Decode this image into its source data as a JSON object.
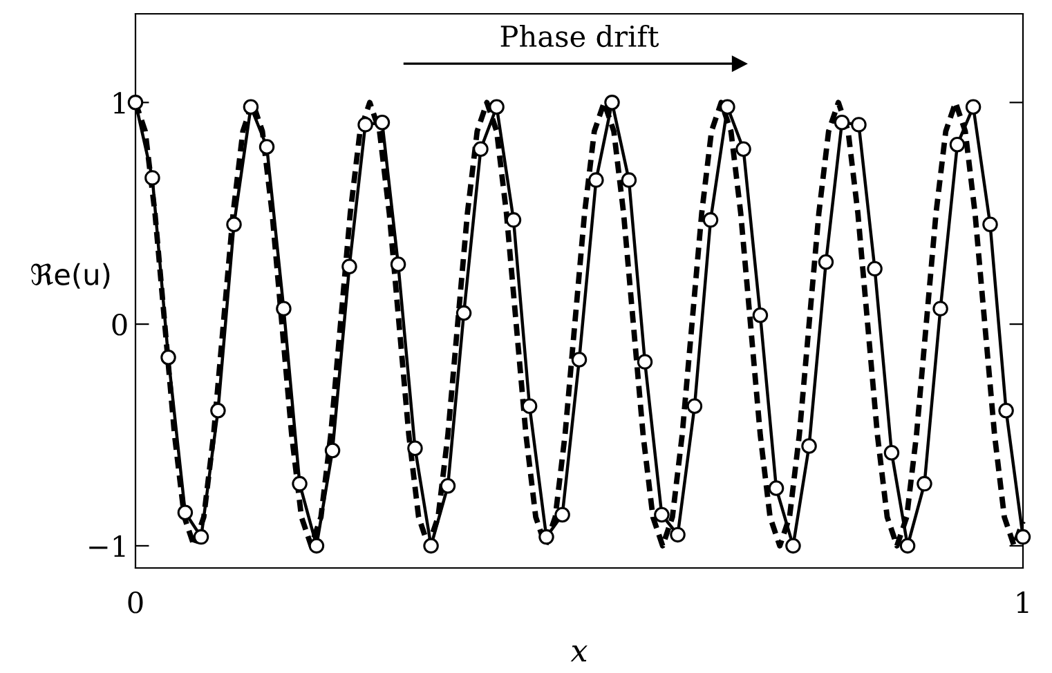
{
  "chart_data": {
    "type": "line",
    "xlabel": "x",
    "ylabel": "ℜe(u)",
    "annotations": [
      "Phase drift"
    ],
    "xlim": [
      0,
      1
    ],
    "ylim": [
      -1.1,
      1.4
    ],
    "xticks": [
      0,
      1
    ],
    "yticks": [
      {
        "value": -1,
        "label": "−1"
      },
      0,
      1
    ],
    "grid": false,
    "legend": false,
    "series": [
      {
        "color": "#000000",
        "line_style": "dashed",
        "marker": "none",
        "x": [
          0,
          0.011,
          0.022,
          0.033,
          0.044,
          0.055,
          0.066,
          0.077,
          0.088,
          0.099,
          0.11,
          0.121,
          0.132,
          0.143,
          0.154,
          0.165,
          0.176,
          0.187,
          0.198,
          0.209,
          0.22,
          0.231,
          0.242,
          0.253,
          0.264,
          0.275,
          0.286,
          0.297,
          0.308,
          0.319,
          0.33,
          0.341,
          0.352,
          0.363,
          0.374,
          0.385,
          0.396,
          0.407,
          0.418,
          0.429,
          0.44,
          0.451,
          0.462,
          0.473,
          0.484,
          0.495,
          0.506,
          0.517,
          0.528,
          0.539,
          0.55,
          0.561,
          0.572,
          0.583,
          0.594,
          0.605,
          0.616,
          0.627,
          0.638,
          0.649,
          0.66,
          0.671,
          0.682,
          0.693,
          0.704,
          0.715,
          0.726,
          0.737,
          0.748,
          0.759,
          0.77,
          0.781,
          0.792,
          0.803,
          0.814,
          0.825,
          0.836,
          0.847,
          0.858,
          0.869,
          0.88,
          0.891,
          0.902,
          0.913,
          0.924,
          0.935,
          0.946,
          0.957,
          0.968,
          0.979,
          0.99,
          1.0
        ],
        "values": [
          1,
          0.87,
          0.5,
          0,
          -0.5,
          -0.87,
          -1,
          -0.87,
          -0.5,
          0,
          0.5,
          0.87,
          1,
          0.87,
          0.5,
          0,
          -0.5,
          -0.87,
          -1,
          -0.87,
          -0.5,
          0,
          0.5,
          0.87,
          1,
          0.87,
          0.5,
          0,
          -0.5,
          -0.87,
          -1,
          -0.87,
          -0.5,
          0,
          0.5,
          0.87,
          1,
          0.87,
          0.5,
          0,
          -0.5,
          -0.87,
          -1,
          -0.87,
          -0.5,
          0,
          0.5,
          0.87,
          1,
          0.87,
          0.5,
          0,
          -0.5,
          -0.87,
          -1,
          -0.87,
          -0.5,
          0,
          0.5,
          0.87,
          1,
          0.87,
          0.5,
          0,
          -0.5,
          -0.87,
          -1,
          -0.87,
          -0.5,
          0,
          0.5,
          0.87,
          1,
          0.87,
          0.5,
          0,
          -0.5,
          -0.87,
          -1,
          -0.87,
          -0.5,
          0,
          0.5,
          0.87,
          1,
          0.87,
          0.5,
          0,
          -0.5,
          -0.87,
          -1,
          -0.89
        ]
      },
      {
        "color": "#000000",
        "line_style": "solid",
        "marker": "circle",
        "x": [
          0,
          0.019,
          0.037,
          0.056,
          0.074,
          0.093,
          0.111,
          0.13,
          0.148,
          0.167,
          0.185,
          0.204,
          0.222,
          0.241,
          0.259,
          0.278,
          0.296,
          0.315,
          0.333,
          0.352,
          0.37,
          0.389,
          0.407,
          0.426,
          0.444,
          0.463,
          0.481,
          0.5,
          0.519,
          0.537,
          0.556,
          0.574,
          0.593,
          0.611,
          0.63,
          0.648,
          0.667,
          0.685,
          0.704,
          0.722,
          0.741,
          0.759,
          0.778,
          0.796,
          0.815,
          0.833,
          0.852,
          0.87,
          0.889,
          0.907,
          0.926,
          0.944,
          0.963,
          0.981,
          1.0
        ],
        "values": [
          1.0,
          0.66,
          -0.15,
          -0.85,
          -0.96,
          -0.39,
          0.45,
          0.98,
          0.8,
          0.07,
          -0.72,
          -1.0,
          -0.57,
          0.26,
          0.9,
          0.91,
          0.27,
          -0.56,
          -1.0,
          -0.73,
          0.05,
          0.79,
          0.98,
          0.47,
          -0.37,
          -0.96,
          -0.86,
          -0.16,
          0.65,
          1.0,
          0.65,
          -0.17,
          -0.86,
          -0.95,
          -0.37,
          0.47,
          0.98,
          0.79,
          0.04,
          -0.74,
          -1.0,
          -0.55,
          0.28,
          0.91,
          0.9,
          0.25,
          -0.58,
          -1.0,
          -0.72,
          0.07,
          0.81,
          0.98,
          0.45,
          -0.39,
          -0.96
        ]
      }
    ]
  }
}
